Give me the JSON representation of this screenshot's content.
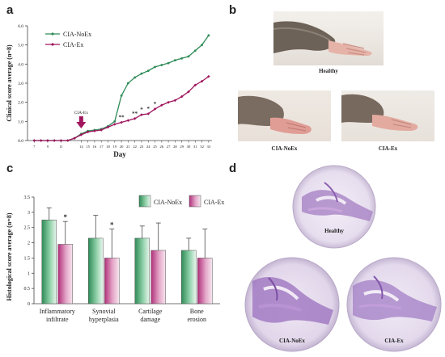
{
  "panels": {
    "a": "a",
    "b": "b",
    "c": "c",
    "d": "d"
  },
  "chart_a": {
    "type": "line",
    "ylabel": "Clinical score average (n=8)",
    "xlabel": "Day",
    "x": [
      7,
      8,
      9,
      10,
      11,
      12,
      13,
      14,
      15,
      16,
      17,
      18,
      19,
      20,
      21,
      22,
      23,
      24,
      25,
      26,
      27,
      28,
      29,
      30,
      31,
      32,
      33
    ],
    "xticks": [
      7,
      9,
      11,
      14,
      15,
      16,
      17,
      18,
      19,
      20,
      21,
      22,
      23,
      24,
      25,
      26,
      27,
      28,
      29,
      30,
      31,
      32,
      33
    ],
    "xtick_labels": [
      "7",
      "9",
      "11",
      "14",
      "15",
      "16",
      "17",
      "18",
      "19",
      "20",
      "21",
      "22",
      "23",
      "24",
      "25",
      "26",
      "27",
      "28",
      "29",
      "30",
      "31",
      "32",
      "33"
    ],
    "ylim": [
      0,
      6
    ],
    "yticks": [
      "0.0",
      "1.0",
      "2.0",
      "3.0",
      "4.0",
      "5.0",
      "6.0"
    ],
    "series": [
      {
        "name": "CIA-NoEx",
        "color": "#2e8b57",
        "x": [
          7,
          8,
          9,
          10,
          11,
          12,
          13,
          14,
          15,
          16,
          17,
          18,
          19,
          20,
          21,
          22,
          23,
          24,
          25,
          26,
          27,
          28,
          29,
          30,
          31,
          32,
          33
        ],
        "values": [
          0,
          0,
          0,
          0,
          0,
          0,
          0.12,
          0.35,
          0.5,
          0.55,
          0.6,
          0.75,
          1.0,
          2.35,
          3.0,
          3.3,
          3.5,
          3.65,
          3.85,
          3.95,
          4.05,
          4.2,
          4.3,
          4.4,
          4.7,
          5.0,
          5.5
        ]
      },
      {
        "name": "CIA-Ex",
        "color": "#a0155e",
        "x": [
          7,
          8,
          9,
          10,
          11,
          12,
          13,
          14,
          15,
          16,
          17,
          18,
          19,
          20,
          21,
          22,
          23,
          24,
          25,
          26,
          27,
          28,
          29,
          30,
          31,
          32,
          33
        ],
        "values": [
          0,
          0,
          0,
          0,
          0,
          0,
          0.12,
          0.3,
          0.45,
          0.5,
          0.55,
          0.7,
          0.85,
          0.95,
          1.05,
          1.15,
          1.35,
          1.4,
          1.65,
          1.85,
          2.0,
          2.1,
          2.3,
          2.55,
          2.9,
          3.1,
          3.35
        ]
      }
    ],
    "annotation": {
      "label": "CIA-Ex",
      "day": 14
    },
    "significance": [
      {
        "day": 20,
        "text": "**"
      },
      {
        "day": 22,
        "text": "**"
      },
      {
        "day": 23,
        "text": "*"
      },
      {
        "day": 24,
        "text": "*"
      },
      {
        "day": 25,
        "text": "*"
      }
    ]
  },
  "chart_c": {
    "type": "bar",
    "ylabel": "Histological score average (n=8)",
    "categories": [
      [
        "Inflammatory",
        "infiltrate"
      ],
      [
        "Synovial",
        "hyperplasia"
      ],
      [
        "Cartilage",
        "damage"
      ],
      [
        "Bone",
        "erosion"
      ]
    ],
    "ylim": [
      0,
      3.5
    ],
    "yticks": [
      "0",
      "0.5",
      "1",
      "1.5",
      "2",
      "2.5",
      "3",
      "3.5"
    ],
    "series": [
      {
        "name": "CIA-NoEx",
        "color": "#2e8b57",
        "values": [
          2.75,
          2.15,
          2.15,
          1.75
        ],
        "errors": [
          0.4,
          0.75,
          0.4,
          0.4
        ]
      },
      {
        "name": "CIA-Ex",
        "color": "#b0307a",
        "values": [
          1.95,
          1.5,
          1.75,
          1.5
        ],
        "errors": [
          0.75,
          0.95,
          0.9,
          0.95
        ]
      }
    ],
    "significance": [
      {
        "category": 0,
        "series": 1,
        "text": "*"
      },
      {
        "category": 1,
        "series": 1,
        "text": "*"
      }
    ]
  },
  "panel_b": {
    "captions": [
      "Healthy",
      "CIA-NoEx",
      "CIA-Ex"
    ]
  },
  "panel_d": {
    "captions": [
      "Healthy",
      "CIA-NoEx",
      "CIA-Ex"
    ]
  }
}
